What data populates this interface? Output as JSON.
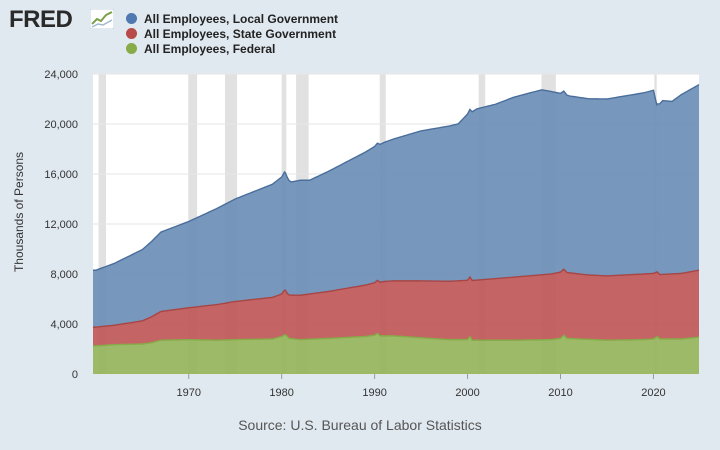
{
  "logo": {
    "text": "FRED"
  },
  "chart_data": {
    "type": "area",
    "stacked": true,
    "source": "Source: U.S. Bureau of Labor Statistics",
    "ylabel": "Thousands of Persons",
    "xlabel": "",
    "xlim": [
      1959.7,
      2024.9
    ],
    "ylim": [
      0,
      24000
    ],
    "yticks": [
      0,
      4000,
      8000,
      12000,
      16000,
      20000,
      24000
    ],
    "ytick_labels": [
      "0",
      "4,000",
      "8,000",
      "12,000",
      "16,000",
      "20,000",
      "24,000"
    ],
    "xticks": [
      1970,
      1980,
      1990,
      2000,
      2010,
      2020
    ],
    "xtick_labels": [
      "1970",
      "1980",
      "1990",
      "2000",
      "2010",
      "2020"
    ],
    "grid": true,
    "legend_position": "top-left",
    "recessions": [
      [
        1960.3,
        1961.1
      ],
      [
        1969.95,
        1970.9
      ],
      [
        1973.9,
        1975.2
      ],
      [
        1980.0,
        1980.5
      ],
      [
        1981.55,
        1982.9
      ],
      [
        1990.55,
        1991.2
      ],
      [
        2001.2,
        2001.9
      ],
      [
        2007.95,
        2009.5
      ],
      [
        2020.1,
        2020.35
      ]
    ],
    "series": [
      {
        "name": "All Employees, Federal",
        "color": "#94b45a",
        "points": [
          [
            1960,
            2250
          ],
          [
            1962,
            2350
          ],
          [
            1965,
            2400
          ],
          [
            1966,
            2500
          ],
          [
            1967,
            2700
          ],
          [
            1970,
            2750
          ],
          [
            1973,
            2700
          ],
          [
            1975,
            2750
          ],
          [
            1979,
            2800
          ],
          [
            1980,
            3000
          ],
          [
            1980.4,
            3150
          ],
          [
            1980.8,
            2850
          ],
          [
            1982,
            2750
          ],
          [
            1985,
            2850
          ],
          [
            1989,
            3000
          ],
          [
            1990,
            3100
          ],
          [
            1990.3,
            3250
          ],
          [
            1990.6,
            3050
          ],
          [
            1992,
            3050
          ],
          [
            1995,
            2900
          ],
          [
            1998,
            2750
          ],
          [
            2000,
            2750
          ],
          [
            2000.25,
            3000
          ],
          [
            2000.5,
            2700
          ],
          [
            2005,
            2700
          ],
          [
            2009,
            2750
          ],
          [
            2010,
            2850
          ],
          [
            2010.35,
            3100
          ],
          [
            2010.7,
            2850
          ],
          [
            2015,
            2700
          ],
          [
            2019,
            2750
          ],
          [
            2020,
            2800
          ],
          [
            2020.4,
            3000
          ],
          [
            2020.7,
            2800
          ],
          [
            2023,
            2800
          ],
          [
            2024.9,
            2950
          ]
        ]
      },
      {
        "name": "All Employees, State Government",
        "color": "#bf5757",
        "points": [
          [
            1960,
            1500
          ],
          [
            1962,
            1550
          ],
          [
            1965,
            1850
          ],
          [
            1967,
            2300
          ],
          [
            1970,
            2550
          ],
          [
            1975,
            3050
          ],
          [
            1980,
            3400
          ],
          [
            1980.3,
            3600
          ],
          [
            1980.6,
            3450
          ],
          [
            1982,
            3550
          ],
          [
            1985,
            3750
          ],
          [
            1990,
            4200
          ],
          [
            1991,
            4350
          ],
          [
            1995,
            4550
          ],
          [
            2000,
            4750
          ],
          [
            2005,
            5050
          ],
          [
            2008,
            5200
          ],
          [
            2010,
            5300
          ],
          [
            2013,
            5150
          ],
          [
            2015,
            5150
          ],
          [
            2019,
            5250
          ],
          [
            2020,
            5250
          ],
          [
            2020.5,
            5150
          ],
          [
            2023,
            5250
          ],
          [
            2024.9,
            5350
          ]
        ]
      },
      {
        "name": "All Employees, Local Government",
        "color": "#6b8fb6",
        "points": [
          [
            1960,
            4550
          ],
          [
            1962,
            4950
          ],
          [
            1965,
            5700
          ],
          [
            1967,
            6350
          ],
          [
            1970,
            6900
          ],
          [
            1975,
            8200
          ],
          [
            1979,
            9050
          ],
          [
            1980.3,
            9450
          ],
          [
            1981,
            9050
          ],
          [
            1982,
            9200
          ],
          [
            1983,
            9100
          ],
          [
            1985,
            9600
          ],
          [
            1990,
            10900
          ],
          [
            1995,
            12000
          ],
          [
            1999,
            12550
          ],
          [
            2000,
            13300
          ],
          [
            2001,
            13700
          ],
          [
            2003,
            13950
          ],
          [
            2005,
            14400
          ],
          [
            2008,
            14800
          ],
          [
            2009,
            14600
          ],
          [
            2010,
            14300
          ],
          [
            2011,
            14150
          ],
          [
            2013,
            14100
          ],
          [
            2015,
            14150
          ],
          [
            2019,
            14500
          ],
          [
            2020,
            14650
          ],
          [
            2020.35,
            13400
          ],
          [
            2021,
            13900
          ],
          [
            2022,
            13800
          ],
          [
            2023,
            14300
          ],
          [
            2024.9,
            14850
          ]
        ]
      }
    ]
  }
}
